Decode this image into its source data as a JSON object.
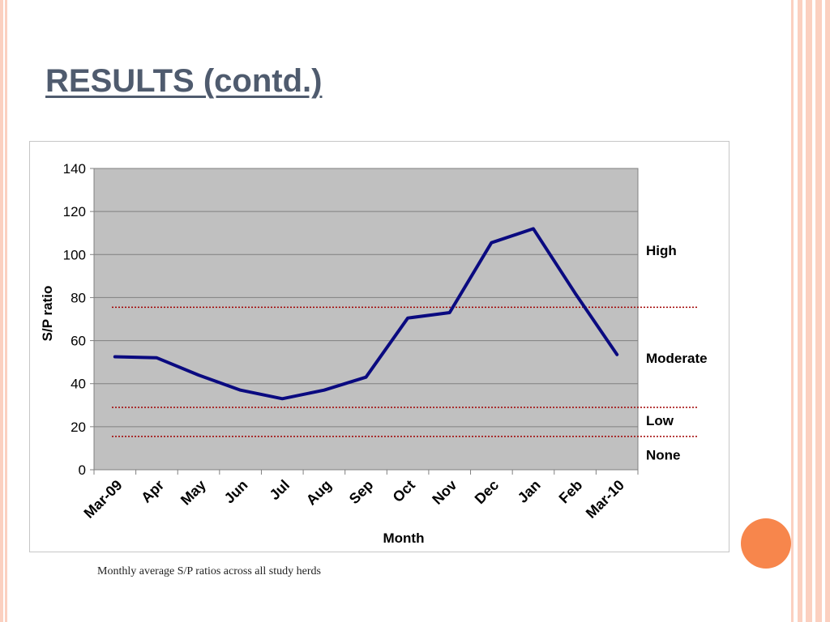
{
  "slide": {
    "title": "RESULTS (contd.)",
    "caption": "Monthly average S/P ratios across all study herds"
  },
  "colors": {
    "accent_orange": "#f7864c",
    "frame_pink": "#fbd0c0",
    "title_color": "#4f5b6e",
    "plot_bg": "#c0c0c0",
    "line": "#0a0a80",
    "threshold": "#a00000"
  },
  "chart_data": {
    "type": "line",
    "title": "",
    "xlabel": "Month",
    "ylabel": "S/P ratio",
    "ylim": [
      0,
      140
    ],
    "yticks": [
      0,
      20,
      40,
      60,
      80,
      100,
      120,
      140
    ],
    "grid": true,
    "categories": [
      "Mar-09",
      "Apr",
      "May",
      "Jun",
      "Jul",
      "Aug",
      "Sep",
      "Oct",
      "Nov",
      "Dec",
      "Jan",
      "Feb",
      "Mar-10"
    ],
    "series": [
      {
        "values": [
          52.5,
          52,
          44,
          37,
          33,
          37,
          43,
          70.5,
          73,
          105.5,
          112,
          82,
          53.5
        ]
      }
    ],
    "thresholds": [
      {
        "value": 75.5
      },
      {
        "value": 29
      },
      {
        "value": 15.5
      }
    ],
    "bands": [
      {
        "label": "High",
        "level": 102
      },
      {
        "label": "Moderate",
        "level": 52
      },
      {
        "label": "Low",
        "level": 23
      },
      {
        "label": "None",
        "level": 7
      }
    ]
  }
}
